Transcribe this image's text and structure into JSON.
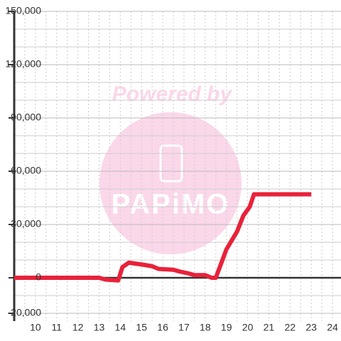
{
  "chart_data": {
    "type": "line",
    "watermark": [
      "Powered by",
      "PAPiMO"
    ],
    "x": [
      9,
      13,
      13.3,
      13.9,
      14.1,
      14.4,
      15,
      15.5,
      15.8,
      16.5,
      16.8,
      17.2,
      17.5,
      18,
      18.3,
      18.5,
      19,
      19.5,
      19.8,
      20.1,
      20.3,
      23
    ],
    "series": [
      {
        "color": "#e8223a",
        "values": [
          0,
          0,
          -1000,
          -1500,
          6000,
          8500,
          7500,
          6500,
          5000,
          4500,
          3500,
          2500,
          1500,
          1500,
          0,
          0,
          16000,
          26000,
          35000,
          40000,
          47000,
          47000
        ]
      }
    ],
    "xlim": [
      9,
      24.4
    ],
    "ylim": [
      -20000,
      150000
    ],
    "xticks": [
      10,
      11,
      12,
      13,
      14,
      15,
      16,
      17,
      18,
      19,
      20,
      21,
      22,
      23,
      24
    ],
    "xminorticks": [
      9.5,
      10.5,
      11.5,
      12.5,
      13.5,
      14.5,
      15.5,
      16.5,
      17.5,
      18.5,
      19.5,
      20.5,
      21.5,
      22.5,
      23.5,
      24
    ],
    "yticks": [
      {
        "value": -20000,
        "label": "-20,000"
      },
      0,
      {
        "value": 30000,
        "label": "30,000"
      },
      {
        "value": 60000,
        "label": "60,000"
      },
      {
        "value": 90000,
        "label": "90,000"
      },
      {
        "value": 120000,
        "label": "120,000"
      },
      {
        "value": 150000,
        "label": "150,000"
      }
    ],
    "yminorticks": [
      -10000,
      10000,
      20000,
      40000,
      50000,
      70000,
      80000,
      100000,
      110000,
      130000,
      140000
    ],
    "grid": true
  }
}
